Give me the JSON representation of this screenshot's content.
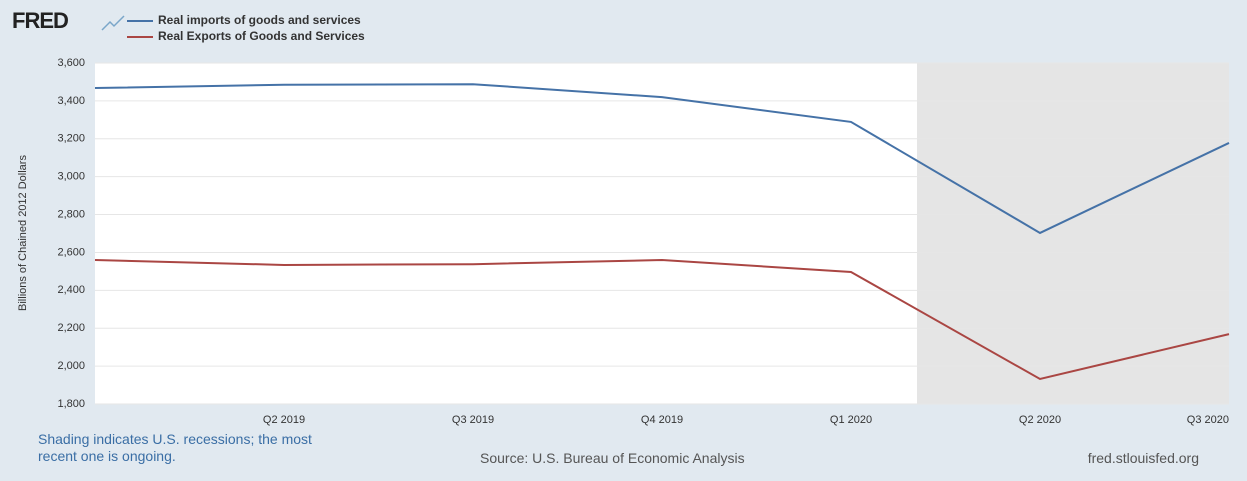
{
  "logo": "FRED",
  "chart_data": {
    "type": "line",
    "y_label": "Billions of Chained 2012 Dollars",
    "categories": [
      null,
      "Q2 2019",
      "Q3 2019",
      "Q4 2019",
      "Q1 2020",
      "Q2 2020",
      "Q3 2020"
    ],
    "series": [
      {
        "name": "Real imports of goods and services",
        "color": "#4572a7",
        "values": [
          3468,
          3485,
          3488,
          3420,
          3289,
          2703,
          3178
        ]
      },
      {
        "name": "Real Exports of Goods and Services",
        "color": "#aa4643",
        "values": [
          2560,
          2534,
          2538,
          2560,
          2497,
          1932,
          2169
        ]
      }
    ],
    "ylim": [
      1800,
      3600
    ],
    "yticks": [
      {
        "value": 1800,
        "label": "1,800"
      },
      {
        "value": 2000,
        "label": "2,000"
      },
      {
        "value": 2200,
        "label": "2,200"
      },
      {
        "value": 2400,
        "label": "2,400"
      },
      {
        "value": 2600,
        "label": "2,600"
      },
      {
        "value": 2800,
        "label": "2,800"
      },
      {
        "value": 3000,
        "label": "3,000"
      },
      {
        "value": 3200,
        "label": "3,200"
      },
      {
        "value": 3400,
        "label": "3,400"
      },
      {
        "value": 3600,
        "label": "3,600"
      }
    ],
    "grid": true,
    "note": "Shading indicates U.S. recessions; the most recent one is ongoing.",
    "source": "Source: U.S. Bureau of Economic Analysis",
    "site": "fred.stlouisfed.org"
  }
}
